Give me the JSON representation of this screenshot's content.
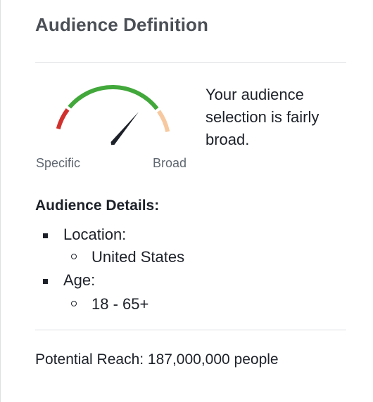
{
  "header": {
    "title": "Audience Definition"
  },
  "gauge": {
    "specific_label": "Specific",
    "broad_label": "Broad",
    "level": 0.72,
    "colors": {
      "specific": "#d0312d",
      "ideal": "#42a83b",
      "broad": "#f7c9a0",
      "needle": "#1d2129"
    }
  },
  "description": "Your audience selection is fairly broad.",
  "details": {
    "heading": "Audience Details:",
    "items": [
      {
        "label": "Location:",
        "values": [
          "United States"
        ]
      },
      {
        "label": "Age:",
        "values": [
          "18 - 65+"
        ]
      }
    ]
  },
  "reach": {
    "text": "Potential Reach: 187,000,000 people"
  }
}
